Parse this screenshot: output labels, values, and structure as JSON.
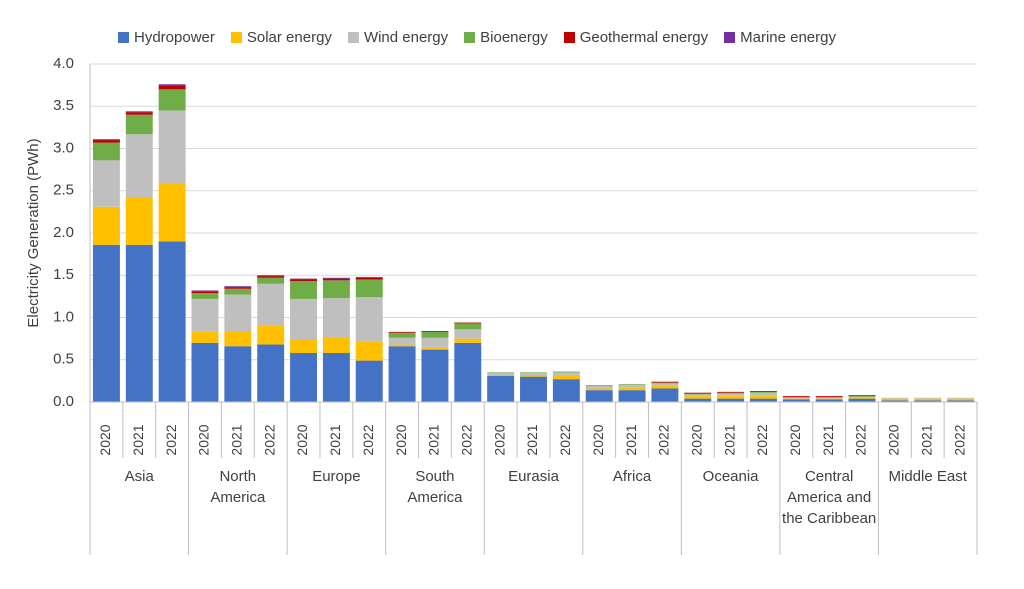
{
  "chart_data": {
    "type": "stacked_bar",
    "y_label": "Electricity Generation (PWh)",
    "categories": [
      "2020",
      "2021",
      "2022",
      "2020",
      "2021",
      "2022",
      "2020",
      "2021",
      "2022",
      "2020",
      "2021",
      "2022",
      "2020",
      "2021",
      "2022",
      "2020",
      "2021",
      "2022",
      "2020",
      "2021",
      "2022",
      "2020",
      "2021",
      "2022",
      "2020",
      "2021",
      "2022"
    ],
    "groups": [
      "Asia",
      "North America",
      "Europe",
      "South America",
      "Eurasia",
      "Africa",
      "Oceania",
      "Central America and the Caribbean",
      "Middle East"
    ],
    "ylim": [
      0,
      4
    ],
    "yticks": [
      {
        "value": 0,
        "label": "0.0"
      },
      0.5,
      {
        "value": 1,
        "label": "1.0"
      },
      1.5,
      {
        "value": 2,
        "label": "2.0"
      },
      2.5,
      {
        "value": 3,
        "label": "3.0"
      },
      3.5,
      {
        "value": 4,
        "label": "4.0"
      }
    ],
    "grid": true,
    "legend": "top",
    "series": [
      {
        "name": "Hydropower",
        "color": "#4472c4",
        "values": [
          1.86,
          1.86,
          1.9,
          0.7,
          0.66,
          0.68,
          0.58,
          0.58,
          0.49,
          0.66,
          0.62,
          0.7,
          0.31,
          0.3,
          0.27,
          0.14,
          0.14,
          0.16,
          0.04,
          0.04,
          0.04,
          0.03,
          0.03,
          0.04,
          0.02,
          0.02,
          0.02
        ]
      },
      {
        "name": "Solar energy",
        "color": "#ffc000",
        "values": [
          0.45,
          0.56,
          0.68,
          0.13,
          0.18,
          0.22,
          0.16,
          0.19,
          0.23,
          0.02,
          0.03,
          0.05,
          0.01,
          0.02,
          0.05,
          0.02,
          0.03,
          0.03,
          0.03,
          0.04,
          0.04,
          0.01,
          0.01,
          0.01,
          0.02,
          0.02,
          0.02
        ]
      },
      {
        "name": "Wind energy",
        "color": "#bfbfbf",
        "values": [
          0.55,
          0.75,
          0.87,
          0.39,
          0.43,
          0.5,
          0.48,
          0.46,
          0.52,
          0.08,
          0.11,
          0.11,
          0.02,
          0.02,
          0.03,
          0.03,
          0.03,
          0.03,
          0.02,
          0.02,
          0.03,
          0.01,
          0.01,
          0.01,
          0.01,
          0.01,
          0.01
        ]
      },
      {
        "name": "Bioenergy",
        "color": "#70ad47",
        "values": [
          0.21,
          0.23,
          0.25,
          0.07,
          0.07,
          0.07,
          0.21,
          0.21,
          0.21,
          0.06,
          0.07,
          0.07,
          0.01,
          0.01,
          0.01,
          0.01,
          0.01,
          0.01,
          0.01,
          0.01,
          0.01,
          0.01,
          0.01,
          0.01,
          0,
          0,
          0
        ]
      },
      {
        "name": "Geothermal energy",
        "color": "#c00000",
        "values": [
          0.03,
          0.03,
          0.04,
          0.02,
          0.02,
          0.02,
          0.02,
          0.02,
          0.02,
          0.01,
          0.01,
          0.01,
          0,
          0,
          0,
          0,
          0,
          0.01,
          0.01,
          0.01,
          0.01,
          0.01,
          0.01,
          0.01,
          0,
          0,
          0
        ]
      },
      {
        "name": "Marine energy",
        "color": "#7030a0",
        "values": [
          0.01,
          0.01,
          0.02,
          0.01,
          0.01,
          0.01,
          0.01,
          0.01,
          0.01,
          0,
          0,
          0,
          0,
          0,
          0,
          0,
          0,
          0,
          0,
          0,
          0,
          0,
          0,
          0,
          0,
          0,
          0
        ]
      }
    ]
  }
}
